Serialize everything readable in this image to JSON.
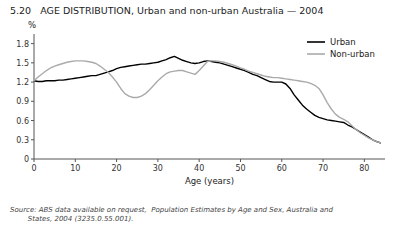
{
  "chart_data": {
    "type": "line",
    "title": "5.20   AGE DISTRIBUTION, Urban and non-urban Australia — 2004",
    "x_label": "Age (years)",
    "y_label": "%",
    "annotations": [
      "Source: ABS data available on request,  Population Estimates by Age and Sex, Australia and\n        States, 2004 (3235.0.55.001)."
    ],
    "x": [
      0,
      1,
      2,
      3,
      4,
      5,
      6,
      7,
      8,
      9,
      10,
      11,
      12,
      13,
      14,
      15,
      16,
      17,
      18,
      19,
      20,
      21,
      22,
      23,
      24,
      25,
      26,
      27,
      28,
      29,
      30,
      31,
      32,
      33,
      34,
      35,
      36,
      37,
      38,
      39,
      40,
      41,
      42,
      43,
      44,
      45,
      46,
      47,
      48,
      49,
      50,
      51,
      52,
      53,
      54,
      55,
      56,
      57,
      58,
      59,
      60,
      61,
      62,
      63,
      64,
      65,
      66,
      67,
      68,
      69,
      70,
      71,
      72,
      73,
      74,
      75,
      76,
      77,
      78,
      79,
      80,
      81,
      82,
      83,
      84
    ],
    "series": [
      {
        "name": "Urban",
        "color": "#000000",
        "values": [
          1.22,
          1.21,
          1.21,
          1.22,
          1.22,
          1.22,
          1.23,
          1.23,
          1.24,
          1.25,
          1.26,
          1.27,
          1.28,
          1.29,
          1.3,
          1.3,
          1.32,
          1.34,
          1.36,
          1.38,
          1.41,
          1.43,
          1.44,
          1.45,
          1.46,
          1.47,
          1.48,
          1.48,
          1.49,
          1.5,
          1.51,
          1.53,
          1.55,
          1.58,
          1.6,
          1.57,
          1.54,
          1.52,
          1.5,
          1.49,
          1.5,
          1.52,
          1.53,
          1.52,
          1.51,
          1.5,
          1.48,
          1.46,
          1.44,
          1.42,
          1.4,
          1.38,
          1.35,
          1.32,
          1.3,
          1.27,
          1.24,
          1.21,
          1.2,
          1.2,
          1.2,
          1.17,
          1.1,
          1.0,
          0.92,
          0.84,
          0.78,
          0.73,
          0.68,
          0.65,
          0.63,
          0.61,
          0.6,
          0.59,
          0.58,
          0.57,
          0.53,
          0.5,
          0.46,
          0.42,
          0.38,
          0.34,
          0.3,
          0.27,
          0.25
        ]
      },
      {
        "name": "Non-urban",
        "color": "#aaaaaa",
        "values": [
          1.22,
          1.28,
          1.33,
          1.38,
          1.42,
          1.45,
          1.47,
          1.49,
          1.51,
          1.52,
          1.53,
          1.53,
          1.53,
          1.52,
          1.51,
          1.49,
          1.45,
          1.4,
          1.35,
          1.28,
          1.2,
          1.1,
          1.02,
          0.98,
          0.96,
          0.96,
          0.98,
          1.02,
          1.08,
          1.15,
          1.22,
          1.28,
          1.33,
          1.36,
          1.37,
          1.38,
          1.38,
          1.36,
          1.34,
          1.32,
          1.38,
          1.45,
          1.52,
          1.53,
          1.53,
          1.52,
          1.51,
          1.49,
          1.47,
          1.45,
          1.42,
          1.4,
          1.37,
          1.35,
          1.33,
          1.31,
          1.29,
          1.28,
          1.27,
          1.27,
          1.26,
          1.25,
          1.24,
          1.23,
          1.22,
          1.21,
          1.2,
          1.18,
          1.15,
          1.1,
          1.0,
          0.88,
          0.78,
          0.7,
          0.65,
          0.62,
          0.58,
          0.52,
          0.46,
          0.41,
          0.37,
          0.33,
          0.3,
          0.27,
          0.25
        ]
      }
    ],
    "xlim": [
      0,
      85
    ],
    "ylim": [
      0,
      1.95
    ],
    "xticks": [
      0,
      10,
      20,
      30,
      40,
      50,
      60,
      70,
      80
    ],
    "yticks": [
      0,
      0.3,
      0.6,
      0.9,
      1.2,
      1.5,
      1.8
    ],
    "grid": false,
    "legend": "upper right"
  }
}
